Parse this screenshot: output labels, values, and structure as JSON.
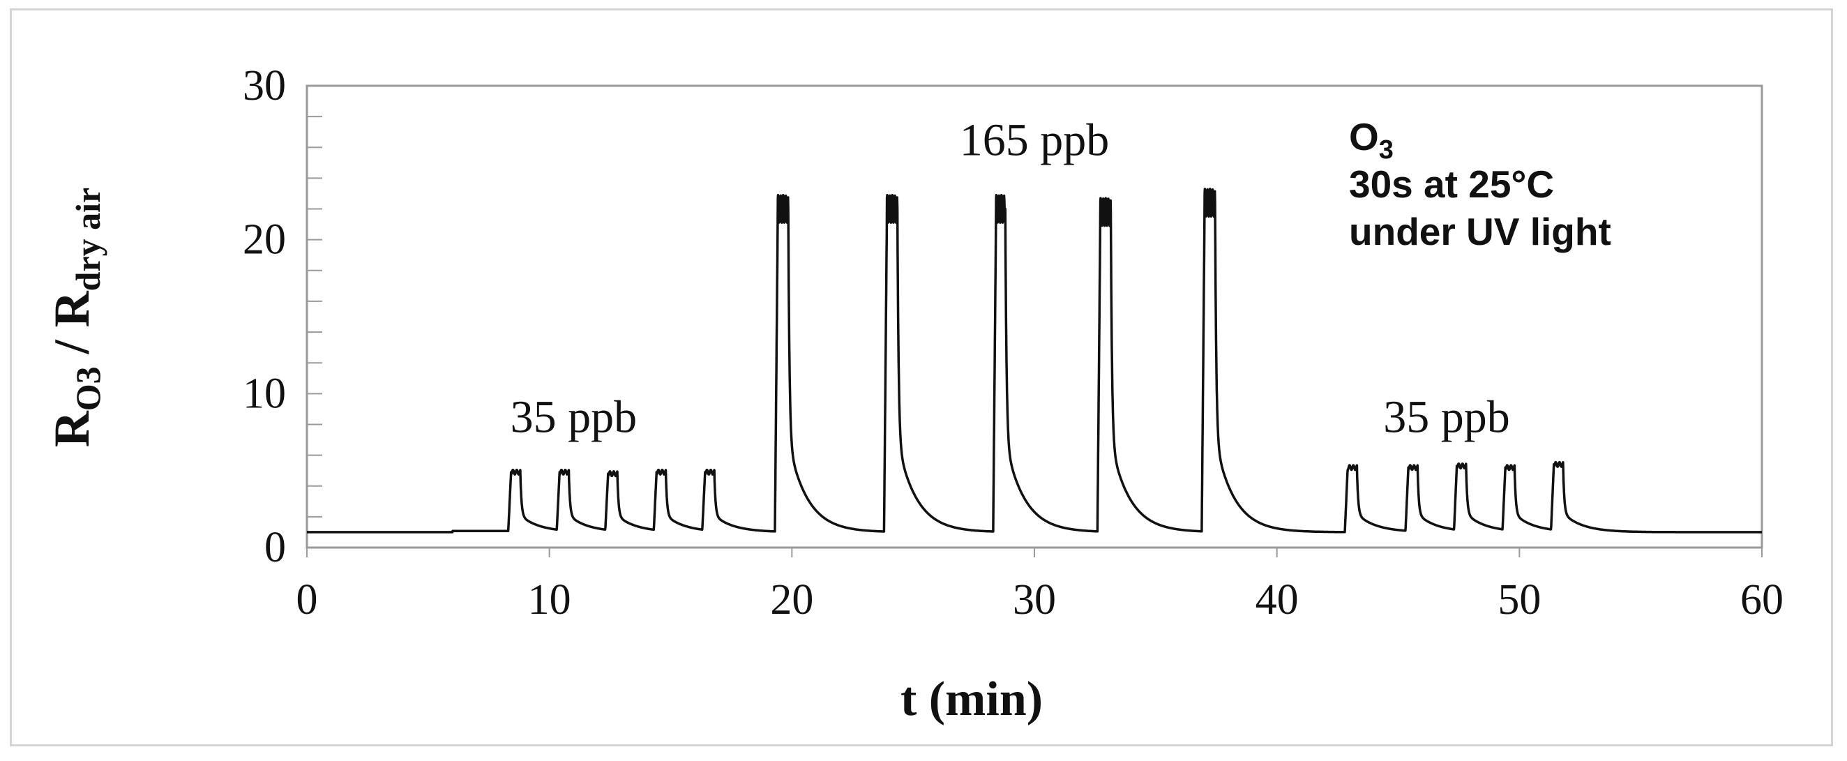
{
  "chart_data": {
    "type": "line",
    "xlabel": "t (min)",
    "ylabel": {
      "main": "R",
      "sub1": "O3",
      "sep": " / R",
      "sub2": "dry air"
    },
    "xlim": [
      0,
      60
    ],
    "ylim": [
      0,
      30
    ],
    "x_ticks": [
      0,
      10,
      20,
      30,
      40,
      50,
      60
    ],
    "y_ticks": [
      0,
      10,
      20,
      30
    ],
    "grid": false,
    "legend": {
      "placement": "top-right",
      "gas": "O",
      "gas_sub": "3",
      "line2": "30s at 25°C",
      "line3": "under UV light"
    },
    "annotations": [
      {
        "text": "35 ppb",
        "x": 11.0,
        "y": 7.5
      },
      {
        "text": "165 ppb",
        "x": 30.0,
        "y": 25.5
      },
      {
        "text": "35 ppb",
        "x": 47.0,
        "y": 7.5
      }
    ],
    "baseline": 1.0,
    "pulses": [
      {
        "start": 8.3,
        "peak": 4.9,
        "duration": 0.5
      },
      {
        "start": 10.3,
        "peak": 4.9,
        "duration": 0.5
      },
      {
        "start": 12.3,
        "peak": 4.8,
        "duration": 0.5
      },
      {
        "start": 14.3,
        "peak": 4.9,
        "duration": 0.5
      },
      {
        "start": 16.3,
        "peak": 4.9,
        "duration": 0.5
      },
      {
        "start": 19.3,
        "peak": 22.0,
        "duration": 0.55
      },
      {
        "start": 23.8,
        "peak": 22.0,
        "duration": 0.55
      },
      {
        "start": 28.3,
        "peak": 22.0,
        "duration": 0.5
      },
      {
        "start": 32.6,
        "peak": 21.8,
        "duration": 0.55
      },
      {
        "start": 36.9,
        "peak": 22.4,
        "duration": 0.55
      },
      {
        "start": 42.8,
        "peak": 5.2,
        "duration": 0.5
      },
      {
        "start": 45.3,
        "peak": 5.2,
        "duration": 0.5
      },
      {
        "start": 47.3,
        "peak": 5.3,
        "duration": 0.5
      },
      {
        "start": 49.3,
        "peak": 5.2,
        "duration": 0.5
      },
      {
        "start": 51.3,
        "peak": 5.4,
        "duration": 0.5
      }
    ]
  }
}
